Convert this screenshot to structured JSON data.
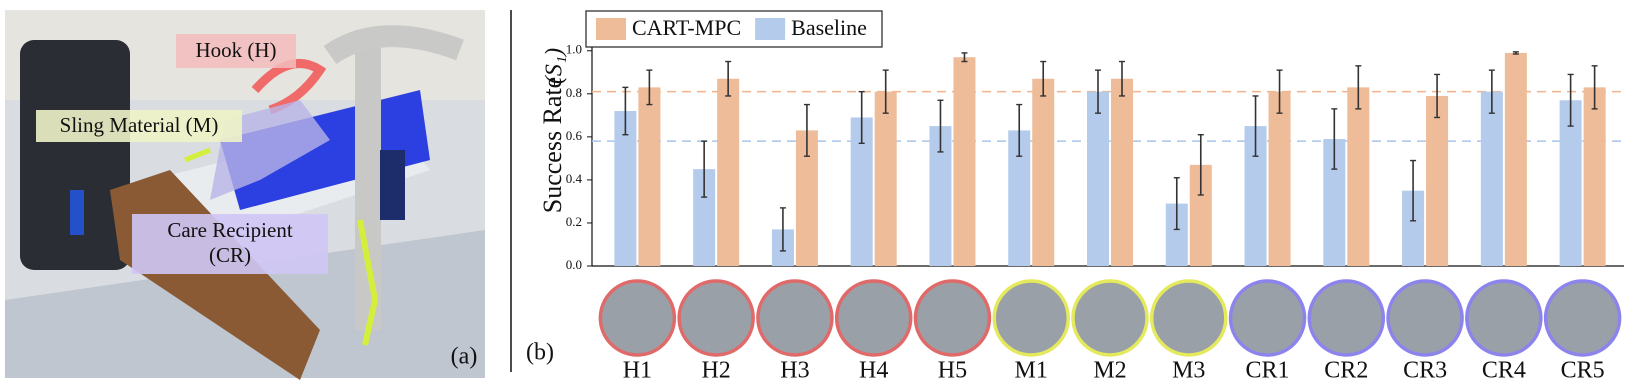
{
  "panel_a": {
    "hook_label": "Hook (H)",
    "sling_label": "Sling Material (M)",
    "recipient_label_1": "Care Recipient",
    "recipient_label_2": "(CR)",
    "panel_label": "(a)"
  },
  "panel_b_label": "(b)",
  "chart_data": {
    "type": "bar",
    "ylabel": "Success Rate",
    "metric_label": "(S₁)",
    "categories": [
      "H1",
      "H2",
      "H3",
      "H4",
      "H5",
      "M1",
      "M2",
      "M3",
      "CR1",
      "CR2",
      "CR3",
      "CR4",
      "CR5"
    ],
    "category_colors": [
      "#e06a6a",
      "#e06a6a",
      "#e06a6a",
      "#e06a6a",
      "#e06a6a",
      "#e4ea5c",
      "#e4ea5c",
      "#e4ea5c",
      "#8c84ec",
      "#8c84ec",
      "#8c84ec",
      "#8c84ec",
      "#8c84ec"
    ],
    "series": [
      {
        "name": "Baseline",
        "color": "#b4cbec",
        "mean_color": "#a9c4ec",
        "mean": 0.58,
        "values": [
          0.72,
          0.45,
          0.17,
          0.69,
          0.65,
          0.63,
          0.81,
          0.29,
          0.65,
          0.59,
          0.35,
          0.81,
          0.77
        ],
        "errors": [
          0.11,
          0.13,
          0.1,
          0.12,
          0.12,
          0.12,
          0.1,
          0.12,
          0.14,
          0.14,
          0.14,
          0.1,
          0.12
        ]
      },
      {
        "name": "CART-MPC",
        "color": "#eebc98",
        "mean_color": "#f0b48c",
        "mean": 0.81,
        "values": [
          0.83,
          0.87,
          0.63,
          0.81,
          0.97,
          0.87,
          0.87,
          0.47,
          0.81,
          0.83,
          0.79,
          0.99,
          0.83
        ],
        "errors": [
          0.08,
          0.08,
          0.12,
          0.1,
          0.02,
          0.08,
          0.08,
          0.14,
          0.1,
          0.1,
          0.1,
          0.005,
          0.1
        ]
      }
    ],
    "legend_order": [
      1,
      0
    ],
    "ylim": [
      0,
      1.05
    ],
    "yticks": [
      {
        "value": 0,
        "label": "0.0"
      },
      {
        "value": 0.2,
        "label": "0.2"
      },
      {
        "value": 0.4,
        "label": "0.4"
      },
      {
        "value": 0.6,
        "label": "0.6"
      },
      {
        "value": 0.8,
        "label": "0.8"
      },
      {
        "value": 1,
        "label": "1.0"
      }
    ],
    "legend": "upper left"
  }
}
